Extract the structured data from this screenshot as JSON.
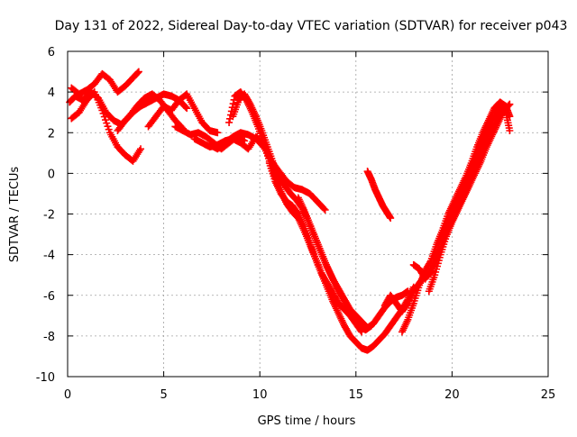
{
  "chart_data": {
    "type": "scatter",
    "title": "Day 131 of 2022, Sidereal Day-to-day VTEC variation (SDTVAR) for receiver p043",
    "xlabel": "GPS time / hours",
    "ylabel": "SDTVAR / TECUs",
    "xlim": [
      0,
      25
    ],
    "ylim": [
      -10,
      6
    ],
    "xticks": [
      "0",
      "5",
      "10",
      "15",
      "20",
      "25"
    ],
    "yticks": [
      "-10",
      "-8",
      "-6",
      "-4",
      "-2",
      "0",
      "2",
      "4",
      "6"
    ],
    "grid": true,
    "marker": "+",
    "series_color": "#ff0000",
    "series": [
      {
        "x": [
          0.2,
          0.6,
          1.0,
          1.4,
          1.8,
          2.2,
          2.6,
          3.0,
          3.4,
          3.7
        ],
        "y": [
          4.2,
          3.9,
          4.1,
          4.4,
          4.9,
          4.6,
          4.0,
          4.3,
          4.7,
          5.0
        ]
      },
      {
        "x": [
          0.1,
          0.4,
          0.8,
          1.2,
          1.6,
          2.0,
          2.4,
          2.8,
          3.2,
          3.6,
          4.0,
          4.4,
          4.8,
          5.2,
          5.6,
          6.0
        ],
        "y": [
          3.5,
          3.8,
          3.6,
          4.0,
          3.7,
          3.0,
          2.6,
          2.4,
          2.8,
          3.3,
          3.7,
          3.9,
          3.6,
          3.1,
          2.6,
          2.2
        ]
      },
      {
        "x": [
          0.2,
          0.6,
          1.0,
          1.4,
          1.8,
          2.2,
          2.6,
          3.0,
          3.4,
          3.8
        ],
        "y": [
          2.7,
          3.0,
          3.6,
          4.0,
          3.1,
          2.0,
          1.3,
          0.9,
          0.6,
          1.2
        ]
      },
      {
        "x": [
          2.6,
          3.0,
          3.4,
          3.8,
          4.2,
          4.6,
          5.0,
          5.4,
          5.8,
          6.2
        ],
        "y": [
          2.1,
          2.6,
          3.0,
          3.3,
          3.5,
          3.7,
          3.9,
          3.8,
          3.6,
          3.2
        ]
      },
      {
        "x": [
          4.2,
          4.6,
          5.0,
          5.4,
          5.8,
          6.2,
          6.6,
          7.0,
          7.4,
          7.8
        ],
        "y": [
          2.3,
          2.8,
          3.3,
          3.1,
          3.6,
          3.9,
          3.2,
          2.5,
          2.1,
          2.0
        ]
      },
      {
        "x": [
          5.6,
          6.0,
          6.4,
          6.8,
          7.2,
          7.6,
          8.0,
          8.4,
          8.8,
          9.2
        ],
        "y": [
          2.3,
          2.1,
          1.9,
          2.0,
          1.8,
          1.5,
          1.2,
          1.5,
          1.8,
          1.6
        ]
      },
      {
        "x": [
          6.6,
          7.0,
          7.4,
          7.8,
          8.2,
          8.6,
          9.0,
          9.4,
          9.8,
          10.2
        ],
        "y": [
          1.7,
          1.5,
          1.3,
          1.4,
          1.6,
          1.7,
          1.5,
          1.2,
          1.8,
          1.4
        ]
      },
      {
        "x": [
          7.4,
          7.8,
          8.2,
          8.6,
          9.0,
          9.4,
          9.8,
          10.2,
          10.6,
          11.0,
          11.4,
          11.8,
          12.2,
          12.6,
          13.0,
          13.4
        ],
        "y": [
          1.4,
          1.2,
          1.5,
          1.8,
          2.0,
          1.9,
          1.7,
          1.3,
          0.6,
          0.1,
          -0.4,
          -0.7,
          -0.8,
          -1.0,
          -1.4,
          -1.8
        ]
      },
      {
        "x": [
          8.4,
          8.7,
          9.0,
          9.3,
          9.6,
          9.9,
          10.2,
          10.5,
          10.8,
          11.1,
          11.4,
          11.7,
          12.0,
          12.3,
          12.6,
          12.9,
          13.2,
          13.5,
          13.8,
          14.1,
          14.4,
          14.7,
          15.0,
          15.3
        ],
        "y": [
          2.5,
          3.8,
          4.0,
          3.6,
          3.0,
          2.3,
          1.5,
          0.6,
          -0.2,
          -0.9,
          -1.5,
          -1.9,
          -2.2,
          -2.8,
          -3.5,
          -4.2,
          -4.9,
          -5.4,
          -5.9,
          -6.4,
          -6.7,
          -7.0,
          -7.4,
          -7.8
        ]
      },
      {
        "x": [
          8.6,
          8.9,
          9.2,
          9.5,
          9.8,
          10.1,
          10.4,
          10.7,
          11.0,
          11.3,
          11.6,
          11.9,
          12.2,
          12.5,
          12.8,
          13.1,
          13.4,
          13.7,
          14.0,
          14.3,
          14.6,
          14.9,
          15.2,
          15.5,
          15.8
        ],
        "y": [
          2.8,
          3.6,
          3.9,
          3.4,
          2.8,
          2.1,
          1.3,
          0.5,
          -0.2,
          -0.6,
          -1.0,
          -1.3,
          -1.7,
          -2.3,
          -3.0,
          -3.7,
          -4.4,
          -5.0,
          -5.6,
          -6.1,
          -6.6,
          -7.1,
          -7.5,
          -7.7,
          -7.5
        ]
      },
      {
        "x": [
          10.5,
          10.8,
          11.1,
          11.4,
          11.7,
          12.0,
          12.3,
          12.6,
          12.9,
          13.2,
          13.5,
          13.8,
          14.1,
          14.4,
          14.7,
          15.0,
          15.3,
          15.6,
          15.9,
          16.2,
          16.5,
          16.8,
          17.1,
          17.4,
          17.7,
          18.0
        ],
        "y": [
          0.5,
          -0.4,
          -1.0,
          -1.4,
          -1.6,
          -2.0,
          -2.6,
          -3.4,
          -4.2,
          -4.9,
          -5.6,
          -6.3,
          -6.9,
          -7.5,
          -8.0,
          -8.3,
          -8.6,
          -8.7,
          -8.5,
          -8.2,
          -7.9,
          -7.5,
          -7.1,
          -6.7,
          -6.2,
          -5.6
        ]
      },
      {
        "x": [
          12.0,
          12.3,
          12.6,
          12.9,
          13.2,
          13.5,
          13.8,
          14.1,
          14.4,
          14.7,
          15.0,
          15.3,
          15.6,
          15.9,
          16.2,
          16.5,
          16.8,
          17.1,
          17.4,
          17.7
        ],
        "y": [
          -1.2,
          -1.8,
          -2.5,
          -3.2,
          -3.9,
          -4.6,
          -5.2,
          -5.7,
          -6.2,
          -6.7,
          -7.0,
          -7.3,
          -7.6,
          -7.4,
          -7.0,
          -6.6,
          -6.3,
          -6.1,
          -6.0,
          -5.8
        ]
      },
      {
        "x": [
          15.6,
          15.8,
          16.0,
          16.2,
          16.4,
          16.6,
          16.8
        ],
        "y": [
          0.1,
          -0.3,
          -0.8,
          -1.2,
          -1.6,
          -1.9,
          -2.2
        ]
      },
      {
        "x": [
          16.5,
          16.8,
          17.1,
          17.4,
          17.7,
          18.0,
          18.3,
          18.6,
          18.9,
          19.2,
          19.5,
          19.8,
          20.1,
          20.4,
          20.7,
          21.0,
          21.3,
          21.6,
          21.9,
          22.2,
          22.5,
          22.8
        ],
        "y": [
          -6.5,
          -6.0,
          -6.4,
          -6.8,
          -6.4,
          -5.8,
          -5.4,
          -5.0,
          -4.9,
          -4.2,
          -3.4,
          -2.7,
          -2.1,
          -1.5,
          -0.9,
          -0.2,
          0.5,
          1.2,
          1.9,
          2.4,
          2.9,
          3.3
        ]
      },
      {
        "x": [
          17.4,
          17.7,
          18.0,
          18.3,
          18.6,
          18.9,
          19.2,
          19.5,
          19.8,
          20.1,
          20.4,
          20.7,
          21.0,
          21.3,
          21.6,
          21.9,
          22.2,
          22.5,
          22.8,
          23.0
        ],
        "y": [
          -7.8,
          -7.2,
          -6.4,
          -5.5,
          -4.8,
          -4.3,
          -3.5,
          -2.8,
          -2.0,
          -1.4,
          -0.8,
          -0.2,
          0.5,
          1.3,
          2.0,
          2.6,
          3.2,
          3.5,
          3.3,
          2.8
        ]
      },
      {
        "x": [
          18.0,
          18.3,
          18.6,
          18.9,
          19.2,
          19.5,
          19.8,
          20.1,
          20.4,
          20.7,
          21.0,
          21.3,
          21.6,
          21.9,
          22.2,
          22.5,
          22.8,
          23.0
        ],
        "y": [
          -4.5,
          -4.7,
          -5.2,
          -4.8,
          -3.9,
          -3.0,
          -2.3,
          -1.7,
          -1.1,
          -0.5,
          0.2,
          0.9,
          1.6,
          2.2,
          2.8,
          3.3,
          3.0,
          2.1
        ]
      },
      {
        "x": [
          18.8,
          19.1,
          19.4,
          19.7,
          20.0,
          20.3,
          20.6,
          20.9,
          21.2,
          21.5,
          21.8,
          22.1,
          22.4,
          22.7,
          23.0
        ],
        "y": [
          -5.8,
          -5.0,
          -4.0,
          -3.1,
          -2.4,
          -1.8,
          -1.2,
          -0.6,
          0.0,
          0.6,
          1.3,
          1.9,
          2.5,
          3.1,
          3.4
        ]
      }
    ]
  }
}
